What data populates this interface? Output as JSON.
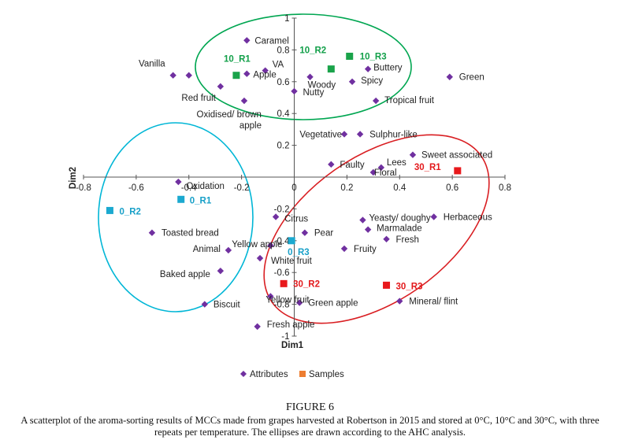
{
  "figure": {
    "title": "FIGURE 6",
    "caption": "A scatterplot of the aroma-sorting results of MCCs made from grapes harvested at Robertson in 2015 and stored at 0°C, 10°C and 30°C, with three repeats per temperature. The ellipses are drawn according to the AHC analysis."
  },
  "chart_data": {
    "type": "scatter",
    "xlabel": "Dim1",
    "ylabel": "Dim2",
    "xlim": [
      -0.8,
      0.8
    ],
    "ylim": [
      -1,
      1
    ],
    "x_ticks": [
      "-0.8",
      "-0.6",
      "-0.4",
      "-0.2",
      "0",
      "0.2",
      "0.4",
      "0.6",
      "0.8"
    ],
    "y_ticks": [
      "-1",
      "-0.8",
      "-0.6",
      "-0.4",
      "-0.2",
      "0",
      "0.2",
      "0.4",
      "0.6",
      "0.8",
      "1"
    ],
    "legend": {
      "position": "bottom",
      "entries": [
        {
          "name": "Attributes",
          "marker": "diamond",
          "color": "#7030a0"
        },
        {
          "name": "Samples",
          "marker": "square",
          "color": "#ed7d31"
        }
      ]
    },
    "grid": false,
    "attributes": [
      {
        "label": "Caramel",
        "x": -0.18,
        "y": 0.86
      },
      {
        "label": "Vanilla",
        "x": -0.46,
        "y": 0.64
      },
      {
        "label": "",
        "x": -0.4,
        "y": 0.64
      },
      {
        "label": "Apple",
        "x": -0.18,
        "y": 0.65
      },
      {
        "label": "VA",
        "x": -0.11,
        "y": 0.67
      },
      {
        "label": "Woody",
        "x": 0.06,
        "y": 0.63
      },
      {
        "label": "Buttery",
        "x": 0.28,
        "y": 0.68
      },
      {
        "label": "Spicy",
        "x": 0.22,
        "y": 0.6
      },
      {
        "label": "Nutty",
        "x": 0.0,
        "y": 0.54
      },
      {
        "label": "Green",
        "x": 0.59,
        "y": 0.63
      },
      {
        "label": "Red fruit",
        "x": -0.28,
        "y": 0.57
      },
      {
        "label": "Oxidised/ brown apple",
        "x": -0.19,
        "y": 0.48
      },
      {
        "label": "Tropical fruit",
        "x": 0.31,
        "y": 0.48
      },
      {
        "label": "Vegetative",
        "x": 0.19,
        "y": 0.27
      },
      {
        "label": "Sulphur-like",
        "x": 0.25,
        "y": 0.27
      },
      {
        "label": "Sweet associated",
        "x": 0.45,
        "y": 0.14
      },
      {
        "label": "Faulty",
        "x": 0.14,
        "y": 0.08
      },
      {
        "label": "Lees",
        "x": 0.33,
        "y": 0.06
      },
      {
        "label": "Floral",
        "x": 0.3,
        "y": 0.03
      },
      {
        "label": "Oxidation",
        "x": -0.44,
        "y": -0.03
      },
      {
        "label": "Citrus",
        "x": -0.07,
        "y": -0.25
      },
      {
        "label": "Yeasty/ doughy",
        "x": 0.26,
        "y": -0.27
      },
      {
        "label": "Herbaceous",
        "x": 0.53,
        "y": -0.25
      },
      {
        "label": "Marmalade",
        "x": 0.28,
        "y": -0.33
      },
      {
        "label": "Fresh",
        "x": 0.35,
        "y": -0.39
      },
      {
        "label": "Toasted bread",
        "x": -0.54,
        "y": -0.35
      },
      {
        "label": "Yellow apple",
        "x": -0.09,
        "y": -0.43
      },
      {
        "label": "Pear",
        "x": 0.04,
        "y": -0.35
      },
      {
        "label": "Fruity",
        "x": 0.19,
        "y": -0.45
      },
      {
        "label": "Animal",
        "x": -0.25,
        "y": -0.46
      },
      {
        "label": "White fruit",
        "x": -0.13,
        "y": -0.51
      },
      {
        "label": "Baked apple",
        "x": -0.28,
        "y": -0.59
      },
      {
        "label": "Yellow fruit",
        "x": -0.09,
        "y": -0.75
      },
      {
        "label": "Green apple",
        "x": 0.02,
        "y": -0.79
      },
      {
        "label": "Biscuit",
        "x": -0.34,
        "y": -0.8
      },
      {
        "label": "Mineral/ flint",
        "x": 0.4,
        "y": -0.78
      },
      {
        "label": "Fresh apple",
        "x": -0.14,
        "y": -0.94
      }
    ],
    "samples": [
      {
        "label": "10_R1",
        "x": -0.22,
        "y": 0.64,
        "group": "10"
      },
      {
        "label": "10_R2",
        "x": 0.14,
        "y": 0.68,
        "group": "10"
      },
      {
        "label": "10_R3",
        "x": 0.21,
        "y": 0.76,
        "group": "10"
      },
      {
        "label": "0_R1",
        "x": -0.43,
        "y": -0.14,
        "group": "0"
      },
      {
        "label": "0_R2",
        "x": -0.7,
        "y": -0.21,
        "group": "0"
      },
      {
        "label": "0_R3",
        "x": -0.01,
        "y": -0.4,
        "group": "0"
      },
      {
        "label": "30_R1",
        "x": 0.62,
        "y": 0.04,
        "group": "30"
      },
      {
        "label": "30_R2",
        "x": -0.04,
        "y": -0.67,
        "group": "30"
      },
      {
        "label": "30_R3",
        "x": 0.35,
        "y": -0.68,
        "group": "30"
      }
    ],
    "group_colors": {
      "0": "#1ba9d0",
      "10": "#1aa34a",
      "30": "#e8191c"
    },
    "label_colors": {
      "0": "#18a0c8",
      "10": "#13a04a",
      "30": "#e3191c"
    },
    "ellipses": [
      {
        "group": "10",
        "color": "#00a651"
      },
      {
        "group": "0",
        "color": "#00b6d6"
      },
      {
        "group": "30",
        "color": "#d91e22"
      }
    ]
  }
}
